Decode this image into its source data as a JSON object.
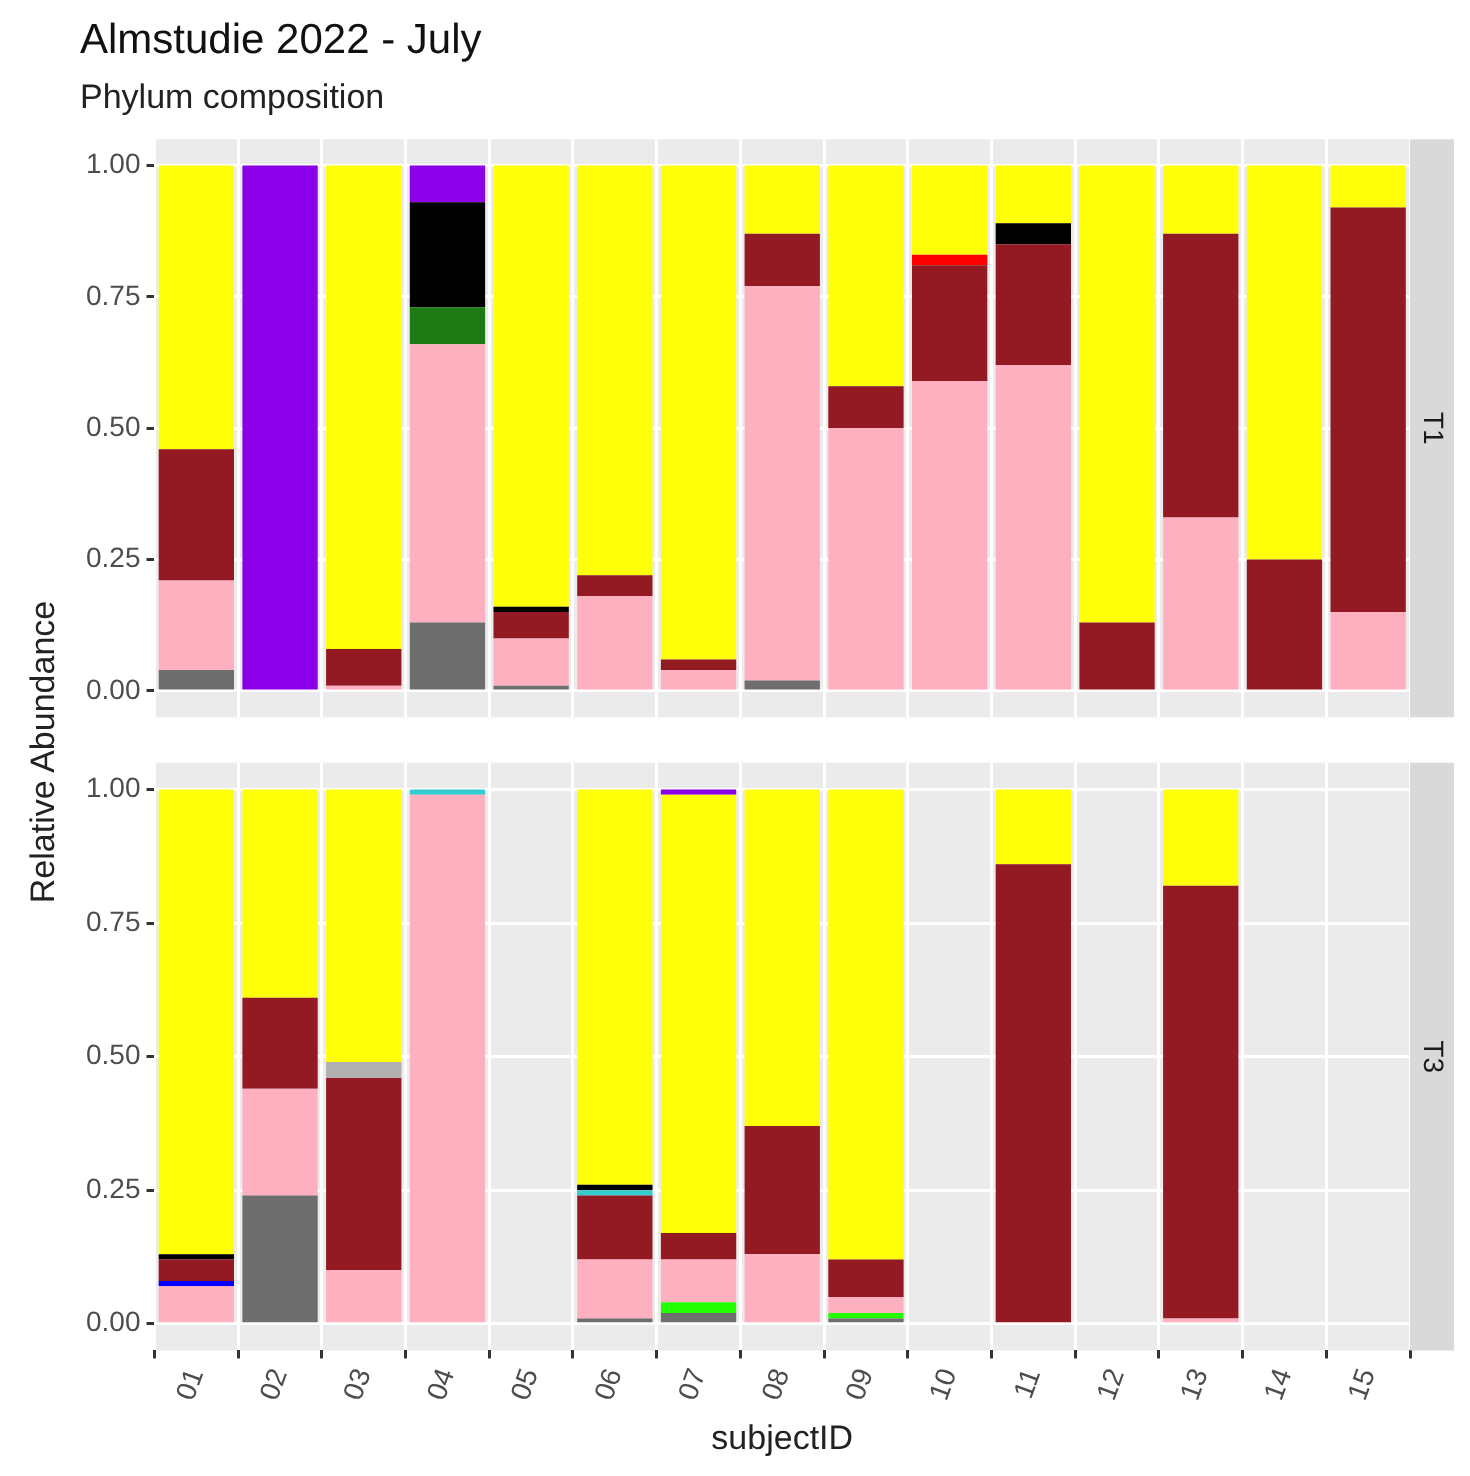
{
  "chart_data": [
    {
      "type": "bar",
      "title": "Almstudie 2022 - July",
      "subtitle": "Phylum composition",
      "ylabel": "Relative Abundance",
      "y2label": "T1",
      "stacked": true,
      "grid": true,
      "legend": false,
      "tick_labels": "y",
      "categories": [
        "01",
        "02",
        "03",
        "04",
        "05",
        "06",
        "07",
        "08",
        "09",
        "10",
        "11",
        "12",
        "13",
        "14",
        "15"
      ],
      "ylim": [
        -0.05,
        1.05
      ],
      "yticks": [
        {
          "value": 0,
          "label": "0.00"
        },
        {
          "value": 0.25,
          "label": "0.25"
        },
        {
          "value": 0.5,
          "label": "0.50"
        },
        {
          "value": 0.75,
          "label": "0.75"
        },
        {
          "value": 1,
          "label": "1.00"
        }
      ],
      "series": [
        {
          "color": "#6e6e6e",
          "values": [
            0.04,
            null,
            null,
            0.13,
            0.01,
            null,
            null,
            0.02,
            null,
            null,
            null,
            null,
            null,
            null,
            null
          ]
        },
        {
          "color": "#ffb0c0",
          "values": [
            0.17,
            null,
            0.01,
            0.53,
            0.09,
            0.18,
            0.04,
            0.75,
            0.5,
            0.59,
            0.62,
            null,
            0.33,
            null,
            0.15
          ]
        },
        {
          "color": "#931a22",
          "values": [
            0.25,
            null,
            0.07,
            null,
            0.05,
            0.04,
            0.02,
            0.1,
            0.08,
            0.22,
            0.23,
            0.13,
            0.54,
            0.25,
            0.77
          ]
        },
        {
          "color": "#1e7a14",
          "values": [
            null,
            null,
            null,
            0.07,
            null,
            null,
            null,
            null,
            null,
            null,
            null,
            null,
            null,
            null,
            null
          ]
        },
        {
          "color": "#ff0000",
          "values": [
            null,
            null,
            null,
            null,
            null,
            null,
            null,
            null,
            null,
            0.02,
            null,
            null,
            null,
            null,
            null
          ]
        },
        {
          "color": "#000000",
          "values": [
            null,
            null,
            null,
            0.2,
            0.01,
            null,
            null,
            null,
            null,
            null,
            0.04,
            null,
            null,
            null,
            null
          ]
        },
        {
          "color": "#ffff0a",
          "values": [
            0.54,
            null,
            0.92,
            null,
            0.84,
            0.78,
            0.94,
            0.13,
            0.42,
            0.17,
            0.11,
            0.87,
            0.13,
            0.75,
            0.08
          ]
        },
        {
          "color": "#8b00e8",
          "values": [
            null,
            1,
            null,
            0.07,
            null,
            null,
            null,
            null,
            null,
            null,
            null,
            null,
            null,
            null,
            null
          ]
        }
      ]
    },
    {
      "type": "bar",
      "xlabel": "subjectID",
      "y2label": "T3",
      "stacked": true,
      "grid": true,
      "legend": false,
      "categories": [
        "01",
        "02",
        "03",
        "04",
        "05",
        "06",
        "07",
        "08",
        "09",
        "10",
        "11",
        "12",
        "13",
        "14",
        "15"
      ],
      "ylim": [
        -0.05,
        1.05
      ],
      "yticks": [
        {
          "value": 0,
          "label": "0.00"
        },
        {
          "value": 0.25,
          "label": "0.25"
        },
        {
          "value": 0.5,
          "label": "0.50"
        },
        {
          "value": 0.75,
          "label": "0.75"
        },
        {
          "value": 1,
          "label": "1.00"
        }
      ],
      "series": [
        {
          "color": "#6e6e6e",
          "values": [
            null,
            0.24,
            null,
            null,
            null,
            0.01,
            0.02,
            null,
            0.01,
            null,
            null,
            null,
            null,
            null,
            null
          ]
        },
        {
          "color": "#22ff00",
          "values": [
            null,
            null,
            null,
            null,
            null,
            null,
            0.02,
            null,
            0.01,
            null,
            null,
            null,
            null,
            null,
            null
          ]
        },
        {
          "color": "#ffb0c0",
          "values": [
            0.07,
            0.2,
            0.1,
            0.99,
            null,
            0.11,
            0.08,
            0.13,
            0.03,
            null,
            null,
            null,
            0.01,
            null,
            null
          ]
        },
        {
          "color": "#0000ff",
          "values": [
            0.01,
            null,
            null,
            null,
            null,
            null,
            null,
            null,
            null,
            null,
            null,
            null,
            null,
            null,
            null
          ]
        },
        {
          "color": "#931a22",
          "values": [
            0.04,
            0.17,
            0.36,
            null,
            null,
            0.12,
            0.05,
            0.24,
            0.07,
            null,
            0.86,
            null,
            0.81,
            null,
            null
          ]
        },
        {
          "color": "#33cccc",
          "values": [
            null,
            null,
            null,
            0.01,
            null,
            0.01,
            null,
            null,
            null,
            null,
            null,
            null,
            null,
            null,
            null
          ]
        },
        {
          "color": "#b0b0b0",
          "values": [
            null,
            null,
            0.03,
            null,
            null,
            null,
            null,
            null,
            null,
            null,
            null,
            null,
            null,
            null,
            null
          ]
        },
        {
          "color": "#000000",
          "values": [
            0.01,
            null,
            null,
            null,
            null,
            0.01,
            null,
            null,
            null,
            null,
            null,
            null,
            null,
            null,
            null
          ]
        },
        {
          "color": "#ffff0a",
          "values": [
            0.87,
            0.39,
            0.51,
            null,
            null,
            0.74,
            0.82,
            0.63,
            0.88,
            null,
            0.14,
            null,
            0.18,
            null,
            null
          ]
        },
        {
          "color": "#8b00e8",
          "values": [
            null,
            null,
            null,
            null,
            null,
            null,
            0.01,
            null,
            null,
            null,
            null,
            null,
            null,
            null,
            null
          ]
        }
      ]
    }
  ]
}
